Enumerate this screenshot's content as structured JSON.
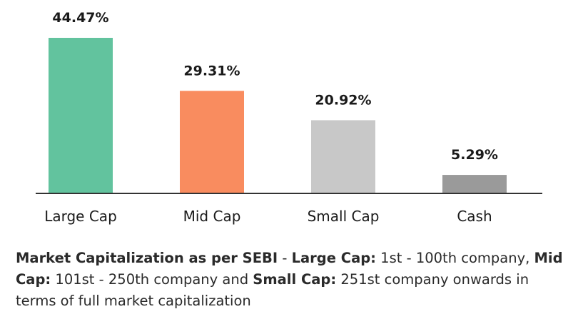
{
  "chart_data": {
    "type": "bar",
    "categories": [
      "Large Cap",
      "Mid Cap",
      "Small Cap",
      "Cash"
    ],
    "values": [
      44.47,
      29.31,
      20.92,
      5.29
    ],
    "value_labels": [
      "44.47%",
      "29.31%",
      "20.92%",
      "5.29%"
    ],
    "colors": [
      "#62c39e",
      "#f98c5f",
      "#c8c8c8",
      "#9a9a9a"
    ],
    "ylim": [
      0,
      50
    ],
    "grid": false,
    "legend": "none"
  },
  "footnote": {
    "part1_bold": "Market Capitalization as per SEBI",
    "part2": " - ",
    "part3_bold": "Large Cap:",
    "part4": " 1st - 100th company, ",
    "part5_bold": "Mid Cap:",
    "part6": " 101st - 250th company and ",
    "part7_bold": "Small Cap:",
    "part8": " 251st company onwards in terms of full market capitalization"
  }
}
